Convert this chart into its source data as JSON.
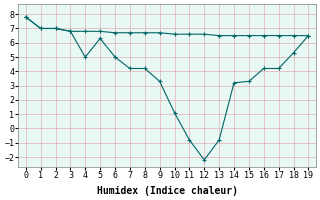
{
  "title": "",
  "xlabel": "Humidex (Indice chaleur)",
  "bg_color": "#ffffff",
  "plot_bg_color": "#e8f8f4",
  "grid_color": "#e0b0b0",
  "line_color": "#006666",
  "xlim": [
    -0.5,
    19.5
  ],
  "ylim": [
    -2.7,
    8.7
  ],
  "xticks": [
    0,
    1,
    2,
    3,
    4,
    5,
    6,
    7,
    8,
    9,
    10,
    11,
    12,
    13,
    14,
    15,
    16,
    17,
    18,
    19
  ],
  "yticks": [
    -2,
    -1,
    0,
    1,
    2,
    3,
    4,
    5,
    6,
    7,
    8
  ],
  "line1_x": [
    0,
    1,
    2,
    3,
    4,
    5,
    6,
    7,
    8,
    9,
    10,
    11,
    12,
    13,
    14,
    15,
    16,
    17,
    18,
    19
  ],
  "line1_y": [
    7.8,
    7.0,
    7.0,
    6.8,
    6.8,
    6.8,
    6.7,
    6.7,
    6.7,
    6.7,
    6.6,
    6.6,
    6.6,
    6.5,
    6.5,
    6.5,
    6.5,
    6.5,
    6.5,
    6.5
  ],
  "line2_x": [
    0,
    1,
    2,
    3,
    4,
    5,
    6,
    7,
    8,
    9,
    10,
    11,
    12,
    13,
    14,
    15,
    16,
    17,
    18,
    19
  ],
  "line2_y": [
    7.8,
    7.0,
    7.0,
    6.8,
    5.0,
    6.3,
    5.0,
    4.2,
    4.2,
    3.3,
    1.1,
    -0.8,
    -2.2,
    -0.8,
    3.2,
    3.3,
    4.2,
    4.2,
    5.3,
    6.5
  ],
  "font_color": "#000000",
  "xlabel_fontsize": 7,
  "tick_fontsize": 6
}
